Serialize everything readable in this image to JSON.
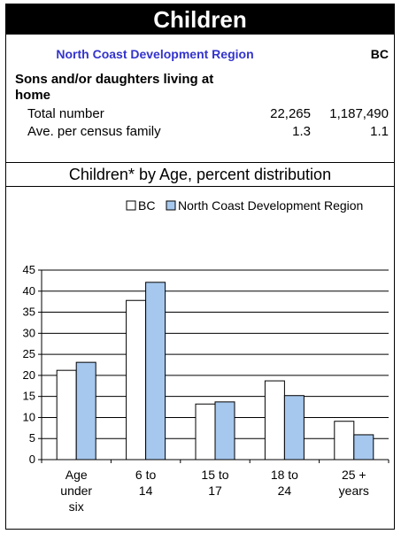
{
  "header": {
    "title": "Children"
  },
  "table": {
    "region_heading": "North Coast Development Region",
    "bc_heading": "BC",
    "section_label": "Sons and/or daughters living at home",
    "rows": [
      {
        "label": "Total number",
        "region": "22,265",
        "bc": "1,187,490"
      },
      {
        "label": "Ave. per census family",
        "region": "1.3",
        "bc": "1.1"
      }
    ]
  },
  "chart_title": "Children* by Age, percent distribution",
  "colors": {
    "region_text": "#3333cc",
    "bc_bar": "#ffffff",
    "region_bar": "#a6c8ee"
  },
  "chart_data": {
    "type": "bar",
    "title": "Children* by Age, percent distribution",
    "categories": [
      [
        "Age",
        "under",
        "six"
      ],
      [
        "6 to",
        "14"
      ],
      [
        "15 to",
        "17"
      ],
      [
        "18 to",
        "24"
      ],
      [
        "25 +",
        "years"
      ]
    ],
    "series": [
      {
        "name": "BC",
        "values": [
          21.2,
          37.8,
          13.2,
          18.7,
          9.1
        ]
      },
      {
        "name": "North Coast Development Region",
        "values": [
          23.1,
          42.1,
          13.7,
          15.2,
          5.9
        ]
      }
    ],
    "ylim": [
      0,
      45
    ],
    "yticks": [
      0,
      5,
      10,
      15,
      20,
      25,
      30,
      35,
      40,
      45
    ],
    "grid": true,
    "legend_position": "top-right"
  }
}
